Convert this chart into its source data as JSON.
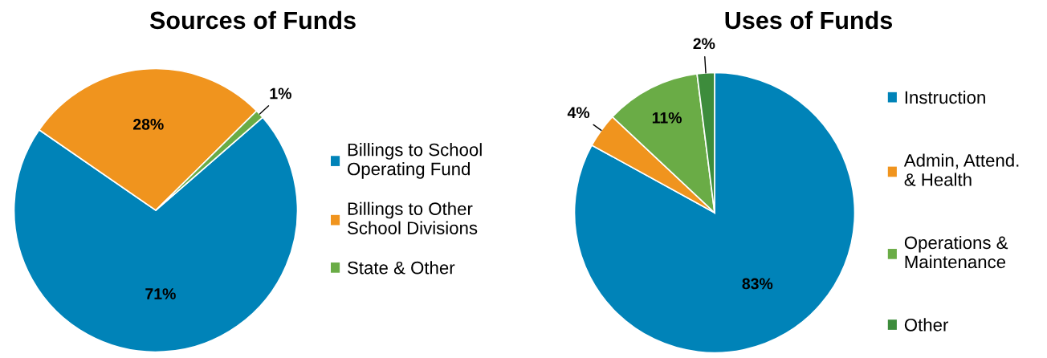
{
  "chart_data": [
    {
      "type": "pie",
      "title": "Sources of Funds",
      "categories": [
        "Billings to School\nOperating Fund",
        "Billings to Other\nSchool Divisions",
        "State & Other"
      ],
      "values": [
        71,
        28,
        1
      ],
      "value_labels": [
        "71%",
        "28%",
        "1%"
      ],
      "colors": [
        "#0083b8",
        "#f0941e",
        "#6aac46"
      ],
      "legend": "right"
    },
    {
      "type": "pie",
      "title": "Uses of Funds",
      "categories": [
        "Instruction",
        "Admin, Attend.\n& Health",
        "Operations &\nMaintenance",
        "Other"
      ],
      "values": [
        83,
        4,
        11,
        2
      ],
      "value_labels": [
        "83%",
        "4%",
        "11%",
        "2%"
      ],
      "colors": [
        "#0083b8",
        "#f0941e",
        "#6aac46",
        "#3d8c3c"
      ],
      "legend": "right"
    }
  ]
}
